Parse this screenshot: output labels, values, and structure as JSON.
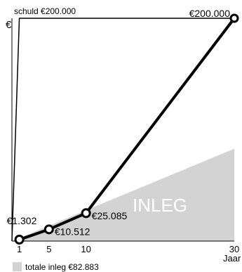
{
  "chart_data": {
    "type": "line",
    "title": "",
    "ylabel": "€",
    "xlabel": "Jaar",
    "x_ticks": [
      "1",
      "5",
      "10",
      "30"
    ],
    "xlim": [
      0,
      30
    ],
    "ylim": [
      0,
      200000
    ],
    "grid": false,
    "debt": {
      "label": "schuld €200.000",
      "points": [
        {
          "x": 0,
          "y": 0
        },
        {
          "x": 1,
          "y": 200000
        },
        {
          "x": 30,
          "y": 200000
        }
      ]
    },
    "savings": {
      "points": [
        {
          "x": 1,
          "y": 1302,
          "label": "€1.302"
        },
        {
          "x": 5,
          "y": 10512,
          "label": "€10.512"
        },
        {
          "x": 10,
          "y": 25085,
          "label": "€25.085"
        },
        {
          "x": 30,
          "y": 200000,
          "label": "€200.000"
        }
      ]
    },
    "contribution_area": {
      "label": "INLEG",
      "points": [
        {
          "x": 0,
          "y": 0
        },
        {
          "x": 30,
          "y": 82883
        }
      ],
      "legend_label": "totale inleg €82.883"
    },
    "colors": {
      "area_fill": "#d3d3d3",
      "area_label": "#ffffff",
      "line": "#000000",
      "marker_fill": "#ffffff"
    }
  }
}
